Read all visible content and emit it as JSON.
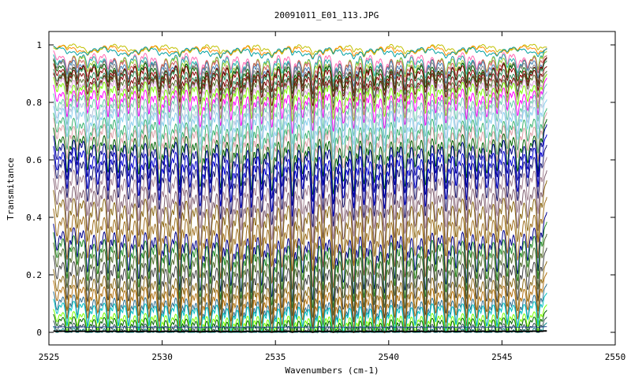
{
  "chart_data": {
    "type": "line",
    "title": "20091011_E01_113.JPG",
    "xlabel": "Wavenumbers (cm-1)",
    "ylabel": "Transmitance",
    "xlim": [
      2525,
      2550
    ],
    "ylim": [
      0,
      1.05
    ],
    "xticks": [
      "2525",
      "2530",
      "2535",
      "2540",
      "2545",
      "2550"
    ],
    "yticks": [
      "0",
      "0.2",
      "0.4",
      "0.6",
      "0.8",
      "1"
    ],
    "x_range": [
      2525.2,
      2547.0
    ],
    "grid": false,
    "legend": "none",
    "series_baselines": [
      1.0,
      0.995,
      0.99,
      0.985,
      0.98,
      0.975,
      0.97,
      0.965,
      0.96,
      0.955,
      0.95,
      0.94,
      0.93,
      0.92,
      0.91,
      0.9,
      0.88,
      0.86,
      0.84,
      0.82,
      0.79,
      0.77,
      0.74,
      0.72,
      0.69,
      0.66,
      0.62,
      0.57,
      0.53,
      0.47,
      0.42,
      0.39,
      0.35,
      0.3,
      0.25,
      0.21,
      0.17,
      0.14,
      0.1,
      0.08,
      0.055,
      0.035,
      0.02,
      0.005
    ],
    "series_colors": [
      "#c0c000",
      "#ff8c00",
      "#00a0a0",
      "#ff69b4",
      "#20b2aa",
      "#9acd32",
      "#cd5c5c",
      "#4682b4",
      "#808080",
      "#006400",
      "#8b0000",
      "#2e8b57",
      "#800000",
      "#556b2f",
      "#dda0dd",
      "#7cfc00",
      "#ff00ff",
      "#66cdaa",
      "#b0c4de",
      "#87ceeb",
      "#3cb371",
      "#dc9fa5",
      "#006400",
      "#00008b",
      "#0000cd",
      "#191970",
      "#a08090",
      "#806070",
      "#8b6914",
      "#a07020",
      "#00008b",
      "#228b22",
      "#556b2f",
      "#404040",
      "#8b6914",
      "#b07010",
      "#2f6f8f",
      "#00c0c0",
      "#7cfc00",
      "#006000",
      "#2f4f4f",
      "#008080",
      "#1f3f8f",
      "#000000"
    ]
  }
}
